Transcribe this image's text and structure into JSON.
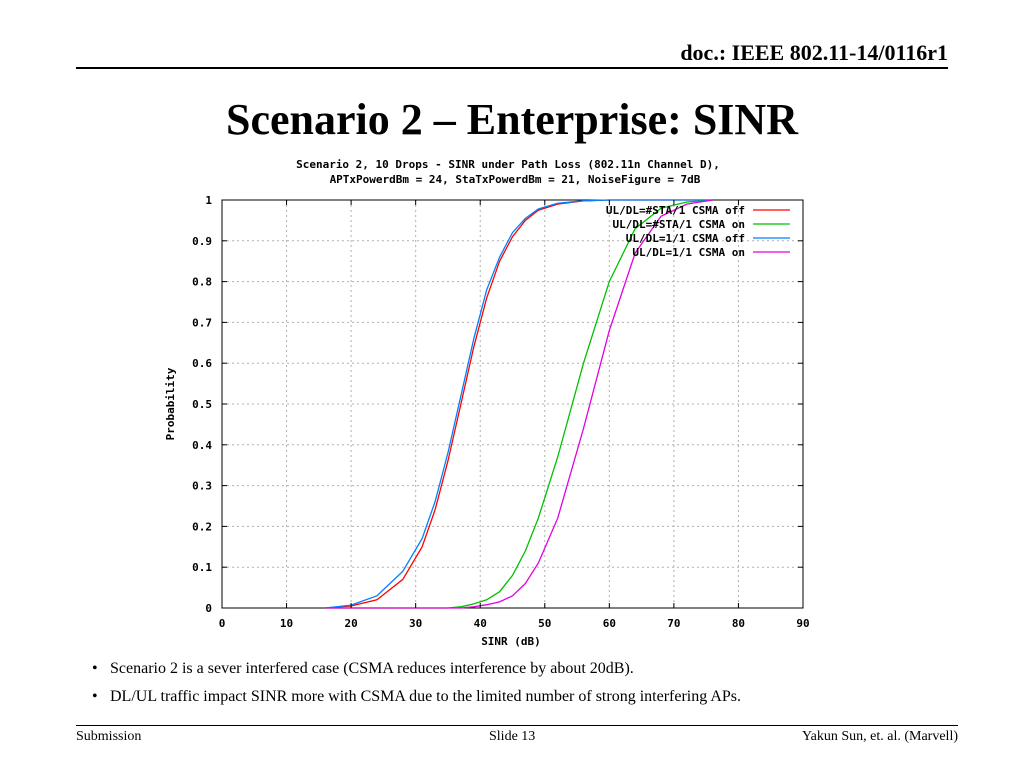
{
  "header": {
    "doc_id": "doc.: IEEE 802.11-14/0116r1"
  },
  "slide": {
    "title": "Scenario 2 – Enterprise: SINR"
  },
  "chart_data": {
    "type": "line",
    "title_line1": "Scenario 2, 10 Drops - SINR under Path Loss (802.11n Channel D),",
    "title_line2": "APTxPowerdBm = 24, StaTxPowerdBm = 21, NoiseFigure = 7dB",
    "xlabel": "SINR (dB)",
    "ylabel": "Probability",
    "xlim": [
      0,
      90
    ],
    "ylim": [
      0,
      1
    ],
    "x_ticks": [
      "0",
      "10",
      "20",
      "30",
      "40",
      "50",
      "60",
      "70",
      "80",
      "90"
    ],
    "y_ticks": [
      "0",
      "0.1",
      "0.2",
      "0.3",
      "0.4",
      "0.5",
      "0.6",
      "0.7",
      "0.8",
      "0.9",
      "1"
    ],
    "grid": true,
    "legend_position": "top-right",
    "x": [
      16,
      20,
      24,
      28,
      31,
      33,
      35,
      37,
      39,
      41,
      43,
      45,
      47,
      49,
      52,
      56,
      60,
      64,
      68,
      72,
      76
    ],
    "series": [
      {
        "name": "UL/DL=#STA/1 CSMA off",
        "color": "#ff0000",
        "values": [
          0.0,
          0.005,
          0.02,
          0.07,
          0.15,
          0.24,
          0.36,
          0.5,
          0.64,
          0.76,
          0.85,
          0.91,
          0.95,
          0.975,
          0.99,
          0.998,
          1.0,
          1.0,
          1.0,
          1.0,
          1.0
        ]
      },
      {
        "name": "UL/DL=#STA/1 CSMA on",
        "color": "#00c000",
        "values": [
          0,
          0,
          0,
          0,
          0,
          0,
          0,
          0.003,
          0.01,
          0.02,
          0.04,
          0.08,
          0.14,
          0.22,
          0.37,
          0.6,
          0.8,
          0.93,
          0.98,
          0.995,
          1.0
        ]
      },
      {
        "name": "UL/DL=1/1 CSMA off",
        "color": "#0080ff",
        "values": [
          0.0,
          0.007,
          0.03,
          0.09,
          0.17,
          0.26,
          0.38,
          0.52,
          0.66,
          0.78,
          0.86,
          0.92,
          0.955,
          0.978,
          0.992,
          0.998,
          1.0,
          1.0,
          1.0,
          1.0,
          1.0
        ]
      },
      {
        "name": "UL/DL=1/1 CSMA on",
        "color": "#e000e0",
        "values": [
          0,
          0,
          0,
          0,
          0,
          0,
          0,
          0,
          0.003,
          0.008,
          0.015,
          0.03,
          0.06,
          0.11,
          0.22,
          0.44,
          0.68,
          0.87,
          0.96,
          0.99,
          1.0
        ]
      }
    ]
  },
  "bullets": [
    "Scenario 2 is a sever interfered case (CSMA reduces interference by about 20dB).",
    "DL/UL traffic impact SINR more with CSMA due to the limited number of strong interfering APs."
  ],
  "footer": {
    "left": "Submission",
    "center": "Slide 13",
    "right": "Yakun Sun, et. al. (Marvell)"
  }
}
